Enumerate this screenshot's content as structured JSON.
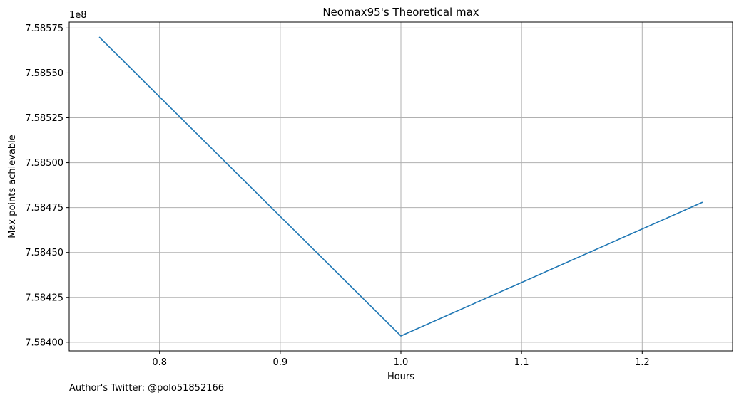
{
  "chart_data": {
    "type": "line",
    "title": "Neomax95's Theoretical max",
    "xlabel": "Hours",
    "ylabel": "Max points achievable",
    "offset_label": "1e8",
    "x": [
      0.75,
      1.0,
      1.25
    ],
    "series": [
      {
        "values": [
          758570000,
          758403500,
          758478000
        ],
        "color": "#1f77b4"
      }
    ],
    "xlim": [
      0.7251,
      1.2749
    ],
    "ylim": [
      758395174,
      758578326
    ],
    "x_ticks": [
      0.8,
      0.9,
      1.0,
      1.1,
      1.2
    ],
    "x_tick_labels": [
      "0.8",
      "0.9",
      "1.0",
      "1.1",
      "1.2"
    ],
    "y_ticks": [
      758400000,
      758425000,
      758450000,
      758475000,
      758500000,
      758525000,
      758550000,
      758575000
    ],
    "y_tick_labels": [
      "7.58400",
      "7.58425",
      "7.58450",
      "7.58475",
      "7.58500",
      "7.58525",
      "7.58550",
      "7.58575"
    ],
    "grid": true,
    "line_color": "#1f77b4"
  },
  "footer": {
    "text": "Author's Twitter: @polo51852166"
  }
}
